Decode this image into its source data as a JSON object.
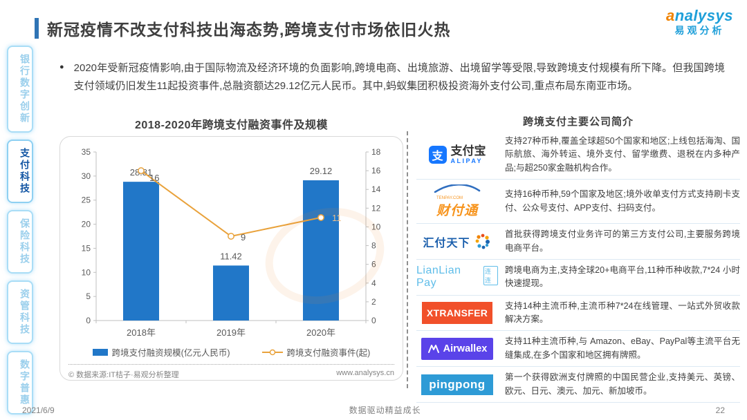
{
  "page": {
    "title": "新冠疫情不改支付科技出海态势,跨境支付市场依旧火热",
    "footer": {
      "date": "2021/6/9",
      "slogan": "数据驱动精益成长",
      "page_number": "22"
    }
  },
  "logo": {
    "brand": "analysys",
    "brand_cn": "易观分析"
  },
  "sidebar": {
    "items": [
      {
        "id": "bank-digital-innovation",
        "label": "银行数字创新",
        "active": false
      },
      {
        "id": "payment-tech",
        "label": "支付科技",
        "active": true
      },
      {
        "id": "insurance-tech",
        "label": "保险科技",
        "active": false
      },
      {
        "id": "asset-mgmt-tech",
        "label": "资管科技",
        "active": false
      },
      {
        "id": "digital-inclusion",
        "label": "数字普惠",
        "active": false
      }
    ]
  },
  "intro": {
    "bullet": "●",
    "text": "2020年受新冠疫情影响,由于国际物流及经济环境的负面影响,跨境电商、出境旅游、出境留学等受限,导致跨境支付规模有所下降。但我国跨境支付领域仍旧发生11起投资事件,总融资额达29.12亿元人民币。其中,蚂蚁集团积极投资海外支付公司,重点布局东南亚市场。"
  },
  "chart_section": {
    "title": "2018-2020年跨境支付融资事件及规模",
    "source": "© 数据来源:IT桔子·易观分析整理",
    "website": "www.analysys.cn"
  },
  "chart_data": {
    "type": "bar",
    "subtype": "bar+line dual axis",
    "title": "2018-2020年跨境支付融资事件及规模",
    "categories": [
      "2018年",
      "2019年",
      "2020年"
    ],
    "series": [
      {
        "name": "跨境支付融资规模(亿元人民币)",
        "type": "bar",
        "axis": "left",
        "values": [
          28.81,
          11.42,
          29.12
        ],
        "color": "#2177C8"
      },
      {
        "name": "跨境支付融资事件(起)",
        "type": "line",
        "axis": "right",
        "values": [
          16,
          9,
          11
        ],
        "color": "#E9A23B"
      }
    ],
    "left_axis": {
      "min": 0,
      "max": 35,
      "step": 5
    },
    "right_axis": {
      "min": 0,
      "max": 18,
      "step": 2
    },
    "grid": false,
    "legend_position": "bottom"
  },
  "companies_section": {
    "title": "跨境支付主要公司简介",
    "companies": [
      {
        "name": "支付宝",
        "logo_char": "支",
        "logo_sub": "ALIPAY",
        "desc": "支持27种币种,覆盖全球超50个国家和地区;上线包括海淘、国际航旅、海外转运、境外支付、留学缴费、退税在内多种产品;与超250家金融机构合作。"
      },
      {
        "name": "财付通",
        "logo_sub": "TENPAY.COM",
        "desc": "支持16种币种,59个国家及地区;境外收单支付方式支持刷卡支付、公众号支付、APP支付、扫码支付。"
      },
      {
        "name": "汇付天下",
        "desc": "首批获得跨境支付业务许可的第三方支付公司,主要服务跨境电商平台。"
      },
      {
        "name": "LianLian Pay",
        "logo_sub": "连连",
        "desc": "跨境电商为主,支持全球20+电商平台,11种币种收款,7*24 小时快速提现。"
      },
      {
        "name": "XTRANSFER",
        "desc": "支持14种主流币种,主流币种7*24在线管理、一站式外贸收款解决方案。"
      },
      {
        "name": "Airwallex",
        "desc": "支持11种主流币种,与 Amazon、eBay、PayPal等主流平台无缝集成,在多个国家和地区拥有牌照。"
      },
      {
        "name": "pingpong",
        "desc": "第一个获得欧洲支付牌照的中国民营企业,支持美元、英镑、欧元、日元、澳元、加元、新加坡币。"
      }
    ]
  }
}
